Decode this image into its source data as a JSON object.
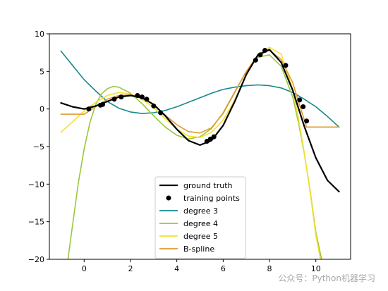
{
  "chart_data": {
    "type": "line",
    "title": "",
    "xlabel": "",
    "ylabel": "",
    "xlim": [
      -1.5,
      11.5
    ],
    "ylim": [
      -20,
      10
    ],
    "xticks": [
      0,
      2,
      4,
      6,
      8,
      10
    ],
    "yticks": [
      -20,
      -15,
      -10,
      -5,
      0,
      5,
      10
    ],
    "legend_position": "lower-center",
    "grid": false,
    "series": [
      {
        "name": "ground truth",
        "color": "#000000",
        "kind": "line",
        "x": [
          -1,
          -0.5,
          0,
          0.5,
          1,
          1.5,
          2,
          2.5,
          3,
          3.5,
          4,
          4.5,
          5,
          5.5,
          6,
          6.5,
          7,
          7.5,
          8,
          8.5,
          9,
          9.5,
          10,
          10.5,
          11
        ],
        "y": [
          0.8,
          0.3,
          0.0,
          0.4,
          1.0,
          1.6,
          1.8,
          1.5,
          0.6,
          -0.9,
          -2.7,
          -4.2,
          -4.8,
          -4.2,
          -2.2,
          1.0,
          4.6,
          7.2,
          7.9,
          6.2,
          2.5,
          -2.3,
          -6.5,
          -9.5,
          -11.0
        ]
      },
      {
        "name": "training points",
        "color": "#000000",
        "kind": "scatter",
        "x": [
          0.2,
          0.7,
          0.8,
          1.3,
          1.6,
          2.3,
          2.5,
          2.7,
          3.0,
          3.3,
          5.3,
          5.45,
          5.6,
          7.4,
          7.6,
          7.8,
          8.7,
          9.3,
          9.45,
          9.6
        ],
        "y": [
          0.0,
          0.5,
          0.6,
          1.3,
          1.6,
          1.8,
          1.6,
          1.3,
          0.4,
          -0.5,
          -4.3,
          -4.0,
          -3.7,
          6.5,
          7.2,
          7.8,
          5.8,
          1.2,
          0.3,
          -1.6
        ]
      },
      {
        "name": "degree 3",
        "color": "#16898c",
        "kind": "line",
        "x": [
          -1,
          -0.5,
          0,
          0.5,
          1,
          1.5,
          2,
          2.5,
          3,
          3.5,
          4,
          4.5,
          5,
          5.5,
          6,
          6.5,
          7,
          7.5,
          8,
          8.5,
          9,
          9.5,
          10,
          10.5,
          11
        ],
        "y": [
          7.7,
          5.8,
          3.9,
          2.4,
          1.0,
          0.1,
          -0.4,
          -0.6,
          -0.5,
          -0.2,
          0.3,
          0.9,
          1.5,
          2.1,
          2.6,
          2.9,
          3.1,
          3.2,
          3.1,
          2.8,
          2.2,
          1.3,
          0.3,
          -1.0,
          -2.4
        ]
      },
      {
        "name": "degree 4",
        "color": "#9ac63e",
        "kind": "line",
        "x": [
          -0.7,
          -0.5,
          -0.25,
          0,
          0.25,
          0.5,
          0.75,
          1,
          1.25,
          1.5,
          2,
          2.5,
          3,
          3.5,
          4,
          4.5,
          5,
          5.5,
          6,
          6.5,
          7,
          7.5,
          8,
          8.5,
          9,
          9.25,
          9.5,
          9.75,
          10,
          10.25
        ],
        "y": [
          -20,
          -15.5,
          -9.8,
          -5.3,
          -1.8,
          0.6,
          2.0,
          2.7,
          3.0,
          2.9,
          2.1,
          0.7,
          -0.9,
          -2.4,
          -3.5,
          -4.0,
          -3.7,
          -2.6,
          -0.5,
          2.3,
          5.0,
          6.9,
          7.2,
          5.7,
          1.6,
          -1.8,
          -5.9,
          -10.8,
          -16.4,
          -20
        ]
      },
      {
        "name": "degree 5",
        "color": "#f5e12a",
        "kind": "line",
        "x": [
          -1,
          -0.5,
          0,
          0.5,
          1,
          1.5,
          2,
          2.5,
          3,
          3.5,
          4,
          4.5,
          5,
          5.5,
          6,
          6.5,
          7,
          7.5,
          8,
          8.5,
          9,
          9.25,
          9.5,
          9.75,
          10,
          10.2
        ],
        "y": [
          -3.1,
          -1.7,
          -0.3,
          0.9,
          1.8,
          2.2,
          2.0,
          1.3,
          0.2,
          -1.3,
          -2.7,
          -3.6,
          -3.8,
          -3.1,
          -1.5,
          1.2,
          4.5,
          7.2,
          8.2,
          7.3,
          2.6,
          -1.3,
          -5.8,
          -11.0,
          -16.8,
          -20
        ]
      },
      {
        "name": "B-spline",
        "color": "#e29a2d",
        "kind": "line",
        "x": [
          -1,
          -0.5,
          0,
          0.5,
          1,
          1.5,
          2,
          2.5,
          3,
          3.5,
          4,
          4.5,
          5,
          5.5,
          6,
          6.5,
          7,
          7.5,
          8,
          8.5,
          9,
          9.3,
          9.6,
          10,
          10.5,
          11
        ],
        "y": [
          -0.7,
          -0.7,
          -0.7,
          0.3,
          1.3,
          1.8,
          1.9,
          1.5,
          0.6,
          -0.8,
          -2.1,
          -3.0,
          -3.2,
          -2.5,
          -0.6,
          2.2,
          5.0,
          7.2,
          7.8,
          6.6,
          3.5,
          0.5,
          -2.4,
          -2.4,
          -2.4,
          -2.4
        ]
      }
    ]
  },
  "watermark": "公众号：Python机器学习"
}
